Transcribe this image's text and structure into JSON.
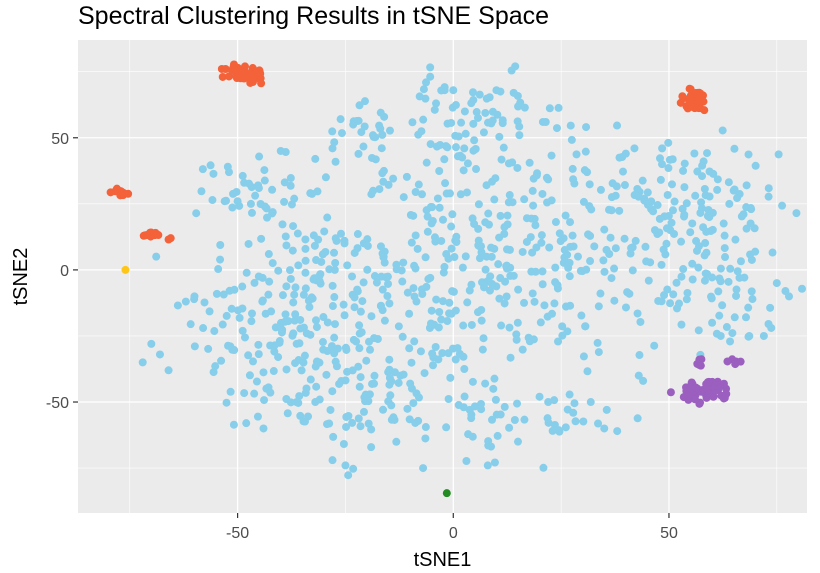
{
  "chart_data": {
    "type": "scatter",
    "title": "Spectral Clustering Results in tSNE Space",
    "xlabel": "tSNE1",
    "ylabel": "tSNE2",
    "xlim": [
      -87,
      82
    ],
    "ylim": [
      -92,
      87
    ],
    "x_ticks": [
      -50,
      0,
      50
    ],
    "y_ticks": [
      -50,
      0,
      50
    ],
    "x_tick_labels": [
      "-50",
      "0",
      "50"
    ],
    "y_tick_labels": [
      "-50",
      "0",
      "50"
    ],
    "grid": true,
    "legend": "none",
    "panel_color": "#ebebeb",
    "series": [
      {
        "color": "#87ceeb",
        "generator": "blob",
        "blobs": [
          {
            "cx": -38,
            "cy": -20,
            "sx": 12,
            "sy": 22,
            "n": 180
          },
          {
            "cx": -5,
            "cy": 5,
            "sx": 15,
            "sy": 25,
            "n": 220
          },
          {
            "cx": -15,
            "cy": -45,
            "sx": 10,
            "sy": 13,
            "n": 90
          },
          {
            "cx": 28,
            "cy": 10,
            "sx": 14,
            "sy": 22,
            "n": 170
          },
          {
            "cx": 55,
            "cy": 20,
            "sx": 10,
            "sy": 15,
            "n": 110
          },
          {
            "cx": 5,
            "cy": 55,
            "sx": 10,
            "sy": 9,
            "n": 60
          },
          {
            "cx": -22,
            "cy": 55,
            "sx": 6,
            "sy": 7,
            "n": 22
          },
          {
            "cx": -45,
            "cy": 30,
            "sx": 7,
            "sy": 8,
            "n": 40
          },
          {
            "cx": 63,
            "cy": -10,
            "sx": 8,
            "sy": 10,
            "n": 45
          },
          {
            "cx": 25,
            "cy": -55,
            "sx": 8,
            "sy": 5,
            "n": 22
          },
          {
            "cx": 5,
            "cy": -55,
            "sx": 5,
            "sy": 10,
            "n": 25
          }
        ],
        "extra_points": [
          [
            -70,
            -28
          ],
          [
            -68,
            -32
          ],
          [
            -72,
            -35
          ],
          [
            -66,
            -38
          ],
          [
            -7,
            -75
          ],
          [
            -28,
            -72
          ],
          [
            -25,
            -74
          ],
          [
            8,
            -74
          ],
          [
            35,
            -60
          ],
          [
            38,
            -61
          ],
          [
            15,
            -65
          ],
          [
            72,
            -25
          ],
          [
            77,
            -8
          ],
          [
            75,
            -5
          ],
          [
            10,
            68
          ],
          [
            14,
            67
          ],
          [
            -32,
            42
          ],
          [
            -28,
            46
          ],
          [
            -4,
            63
          ],
          [
            -2,
            68
          ],
          [
            0,
            68
          ],
          [
            -52,
            37
          ],
          [
            -53,
            26
          ],
          [
            -50,
            26
          ],
          [
            65,
            30
          ],
          [
            68,
            32
          ],
          [
            -60,
            -10
          ],
          [
            -62,
            -12
          ],
          [
            -58,
            -22
          ],
          [
            43,
            -40
          ],
          [
            44,
            -42
          ],
          [
            40,
            44
          ],
          [
            42,
            46
          ],
          [
            -48,
            -58
          ],
          [
            -44,
            -60
          ],
          [
            20,
            -48
          ],
          [
            22,
            -50
          ],
          [
            60,
            -20
          ],
          [
            62,
            -25
          ],
          [
            -40,
            45
          ]
        ]
      },
      {
        "color": "#f4623a",
        "generator": "blob",
        "blobs": [
          {
            "cx": -48,
            "cy": 74,
            "sx": 2.4,
            "sy": 1.8,
            "n": 40
          },
          {
            "cx": 56,
            "cy": 64,
            "sx": 2.0,
            "sy": 2.2,
            "n": 40
          },
          {
            "cx": -77,
            "cy": 29.5,
            "sx": 1.0,
            "sy": 0.8,
            "n": 12
          },
          {
            "cx": -70,
            "cy": 13.5,
            "sx": 1.4,
            "sy": 0.5,
            "n": 10
          }
        ],
        "extra_points": [
          [
            -66,
            11.5
          ],
          [
            -65.5,
            12
          ]
        ]
      },
      {
        "color": "#9b5fc0",
        "generator": "blob",
        "blobs": [
          {
            "cx": 59,
            "cy": -46,
            "sx": 3.2,
            "sy": 2.2,
            "n": 45
          },
          {
            "cx": 65,
            "cy": -35,
            "sx": 1.0,
            "sy": 1.0,
            "n": 5
          },
          {
            "cx": 57,
            "cy": -35,
            "sx": 1.0,
            "sy": 1.0,
            "n": 5
          }
        ],
        "extra_points": []
      },
      {
        "color": "#228b22",
        "generator": "points",
        "blobs": [],
        "extra_points": [
          [
            -1.5,
            -84.5
          ]
        ]
      },
      {
        "color": "#ffc61a",
        "generator": "points",
        "blobs": [],
        "extra_points": [
          [
            -76,
            0
          ]
        ]
      }
    ]
  }
}
